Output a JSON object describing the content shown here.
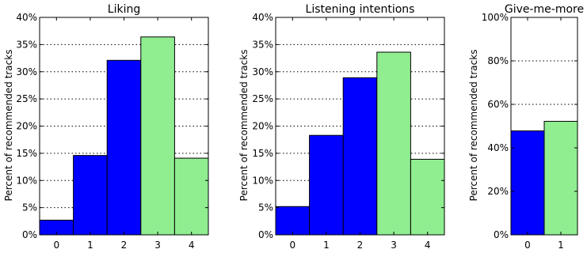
{
  "colors": {
    "blue": "#0000ff",
    "green": "#90ee90"
  },
  "chart_data": [
    {
      "type": "bar",
      "title": "Liking",
      "ylabel": "Percent of recommended tracks",
      "categories": [
        "0",
        "1",
        "2",
        "3",
        "4"
      ],
      "values": [
        2.7,
        14.6,
        32.1,
        36.4,
        14.1
      ],
      "bar_colors": [
        "blue",
        "blue",
        "blue",
        "green",
        "green"
      ],
      "ylim": [
        0,
        40
      ],
      "yticks": [
        0,
        5,
        10,
        15,
        20,
        25,
        30,
        35,
        40
      ],
      "ytick_labels": [
        "0%",
        "5%",
        "10%",
        "15%",
        "20%",
        "25%",
        "30%",
        "35%",
        "40%"
      ],
      "grid": true
    },
    {
      "type": "bar",
      "title": "Listening intentions",
      "ylabel": "Percent of recommended tracks",
      "categories": [
        "0",
        "1",
        "2",
        "3",
        "4"
      ],
      "values": [
        5.2,
        18.3,
        28.9,
        33.6,
        13.9
      ],
      "bar_colors": [
        "blue",
        "blue",
        "blue",
        "green",
        "green"
      ],
      "ylim": [
        0,
        40
      ],
      "yticks": [
        0,
        5,
        10,
        15,
        20,
        25,
        30,
        35,
        40
      ],
      "ytick_labels": [
        "0%",
        "5%",
        "10%",
        "15%",
        "20%",
        "25%",
        "30%",
        "35%",
        "40%"
      ],
      "grid": true
    },
    {
      "type": "bar",
      "title": "Give-me-more",
      "ylabel": "Percent of recommended tracks",
      "categories": [
        "0",
        "1"
      ],
      "values": [
        47.8,
        52.2
      ],
      "bar_colors": [
        "blue",
        "green"
      ],
      "ylim": [
        0,
        100
      ],
      "yticks": [
        0,
        20,
        40,
        60,
        80,
        100
      ],
      "ytick_labels": [
        "0%",
        "20%",
        "40%",
        "60%",
        "80%",
        "100%"
      ],
      "grid": true
    }
  ]
}
